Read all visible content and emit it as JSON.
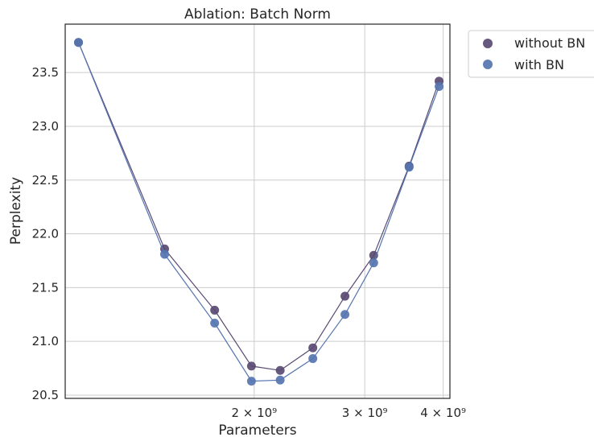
{
  "chart_data": {
    "type": "scatter",
    "title": "Ablation: Batch Norm",
    "xlabel": "Parameters",
    "ylabel": "Perplexity",
    "x_scale": "log",
    "xlim": [
      1000000000,
      4100000000
    ],
    "ylim": [
      20.47,
      23.95
    ],
    "grid": true,
    "legend_position": "upper right, outside plot",
    "x_ticks": [
      {
        "value": 2000000000,
        "label": "2 × 10⁹"
      },
      {
        "value": 3000000000,
        "label": "3 × 10⁹"
      },
      {
        "value": 4000000000,
        "label": "4 × 10⁹"
      }
    ],
    "y_ticks": [
      {
        "value": 20.5,
        "label": "20.5"
      },
      {
        "value": 21.0,
        "label": "21.0"
      },
      {
        "value": 21.5,
        "label": "21.5"
      },
      {
        "value": 22.0,
        "label": "22.0"
      },
      {
        "value": 22.5,
        "label": "22.5"
      },
      {
        "value": 23.0,
        "label": "23.0"
      },
      {
        "value": 23.5,
        "label": "23.5"
      }
    ],
    "x": [
      1050000000,
      1440000000,
      1730000000,
      1980000000,
      2200000000,
      2480000000,
      2790000000,
      3100000000,
      3530000000,
      3940000000
    ],
    "series": [
      {
        "name": "without BN",
        "color": "#5a4a72",
        "values": [
          23.78,
          21.86,
          21.29,
          20.77,
          20.73,
          20.94,
          21.42,
          21.8,
          22.63,
          23.42
        ]
      },
      {
        "name": "with BN",
        "color": "#5575b0",
        "values": [
          23.78,
          21.81,
          21.17,
          20.63,
          20.64,
          20.84,
          21.25,
          21.73,
          22.62,
          23.37
        ]
      }
    ]
  }
}
